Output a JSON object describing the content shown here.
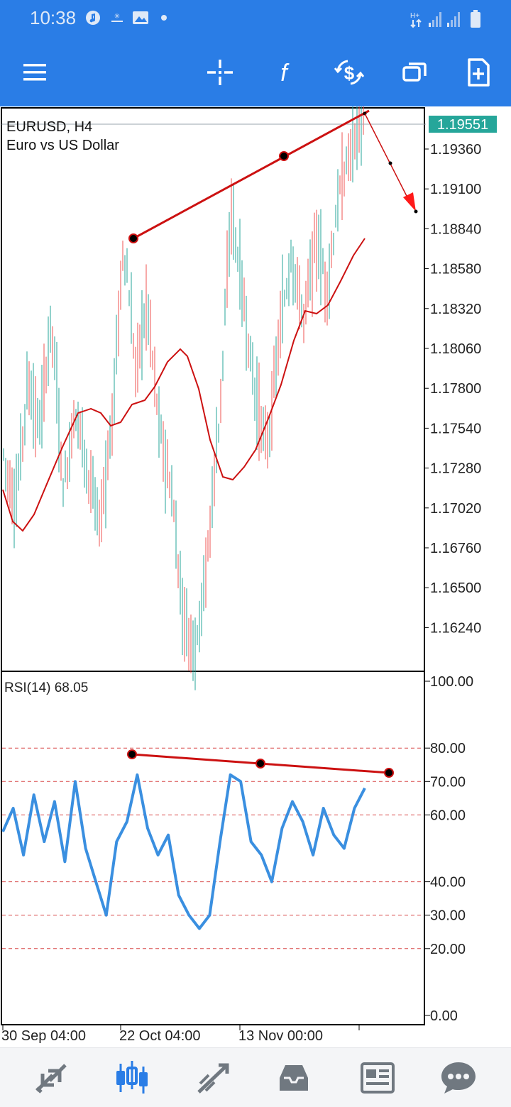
{
  "status_bar": {
    "time": "10:38",
    "icons": [
      "music-icon",
      "app-icon",
      "image-icon",
      "dot-icon",
      "network-arrows-icon",
      "signal-icon",
      "signal-icon",
      "battery-icon"
    ]
  },
  "toolbar": {
    "icons": [
      "menu-icon",
      "crosshair-icon",
      "function-icon",
      "dollar-refresh-icon",
      "windows-icon",
      "new-order-icon"
    ]
  },
  "chart": {
    "symbol_line": "EURUSD, H4",
    "description": "Euro vs US Dollar",
    "current_price": "1.19551",
    "price_ticks": [
      "1.19360",
      "1.19100",
      "1.18840",
      "1.18580",
      "1.18320",
      "1.18060",
      "1.17800",
      "1.17540",
      "1.17280",
      "1.17020",
      "1.16760",
      "1.16500",
      "1.16240"
    ],
    "rsi_label": "RSI(14) 68.05",
    "rsi_ticks": [
      "100.00",
      "80.00",
      "70.00",
      "60.00",
      "40.00",
      "30.00",
      "20.00",
      "0.00"
    ],
    "time_labels": [
      "30 Sep 04:00",
      "22 Oct 04:00",
      "13 Nov 00:00"
    ],
    "colors": {
      "bull": "#26a69a",
      "bear": "#ef5350",
      "ma": "#cc1111",
      "trendline": "#cc1111",
      "rsi": "#3a8fe0",
      "price_badge": "#26a69a",
      "header": "#2a7de6"
    }
  },
  "chart_data": {
    "type": "candlestick",
    "title": "EURUSD, H4",
    "subtitle": "Euro vs US Dollar",
    "ylim": [
      1.161,
      1.196
    ],
    "last_price": 1.19551,
    "series": [
      {
        "name": "EURUSD",
        "close_path": [
          1.1745,
          1.171,
          1.179,
          1.176,
          1.183,
          1.172,
          1.1775,
          1.1735,
          1.17,
          1.176,
          1.188,
          1.18,
          1.184,
          1.176,
          1.172,
          1.164,
          1.162,
          1.168,
          1.177,
          1.19,
          1.184,
          1.178,
          1.175,
          1.182,
          1.187,
          1.183,
          1.188,
          1.185,
          1.191,
          1.194,
          1.1955
        ]
      },
      {
        "name": "MA",
        "values": [
          1.172,
          1.17,
          1.174,
          1.177,
          1.176,
          1.1765,
          1.1785,
          1.18,
          1.1805,
          1.176,
          1.172,
          1.1735,
          1.179,
          1.183,
          1.183,
          1.186,
          1.188
        ]
      }
    ],
    "indicator": {
      "name": "RSI(14)",
      "last": 68.05,
      "ylim": [
        0,
        100
      ],
      "levels": [
        80,
        70,
        60,
        40,
        30,
        20
      ],
      "values": [
        55,
        62,
        48,
        66,
        52,
        64,
        46,
        70,
        50,
        40,
        30,
        52,
        58,
        72,
        56,
        48,
        54,
        36,
        30,
        26,
        30,
        52,
        72,
        70,
        52,
        48,
        40,
        56,
        64,
        58,
        48,
        62,
        54,
        50,
        62,
        68
      ]
    }
  }
}
